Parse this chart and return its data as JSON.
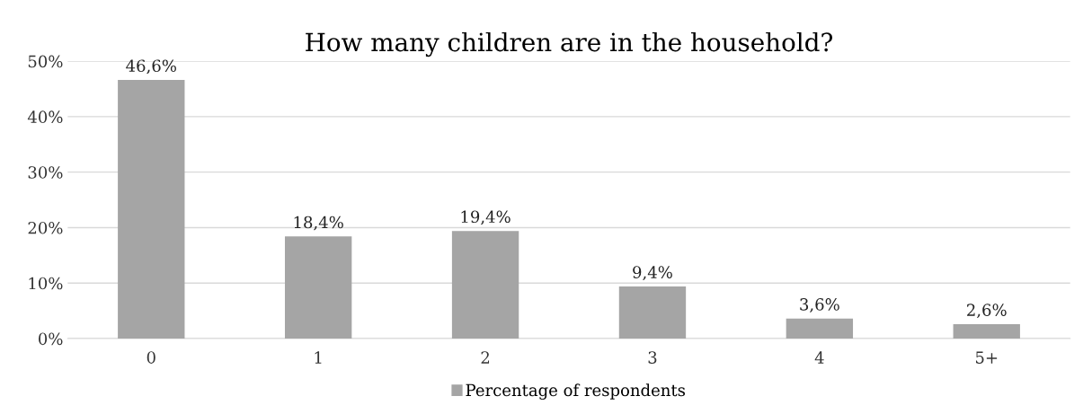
{
  "chart_data": {
    "type": "bar",
    "title": "How many children are in the household?",
    "categories": [
      "0",
      "1",
      "2",
      "3",
      "4",
      "5+"
    ],
    "series": [
      {
        "name": "Percentage of respondents",
        "color": "#a5a5a5",
        "values": [
          46.6,
          18.4,
          19.4,
          9.4,
          3.6,
          2.6
        ],
        "value_labels": [
          "46,6%",
          "18,4%",
          "19,4%",
          "9,4%",
          "3,6%",
          "2,6%"
        ]
      }
    ],
    "ylim": [
      0,
      50
    ],
    "yticks": [
      {
        "value": 0,
        "label": "0%"
      },
      {
        "value": 10,
        "label": "10%"
      },
      {
        "value": 20,
        "label": "20%"
      },
      {
        "value": 30,
        "label": "30%"
      },
      {
        "value": 40,
        "label": "40%"
      },
      {
        "value": 50,
        "label": "50%"
      }
    ],
    "grid": "y",
    "legend": "bottom"
  }
}
